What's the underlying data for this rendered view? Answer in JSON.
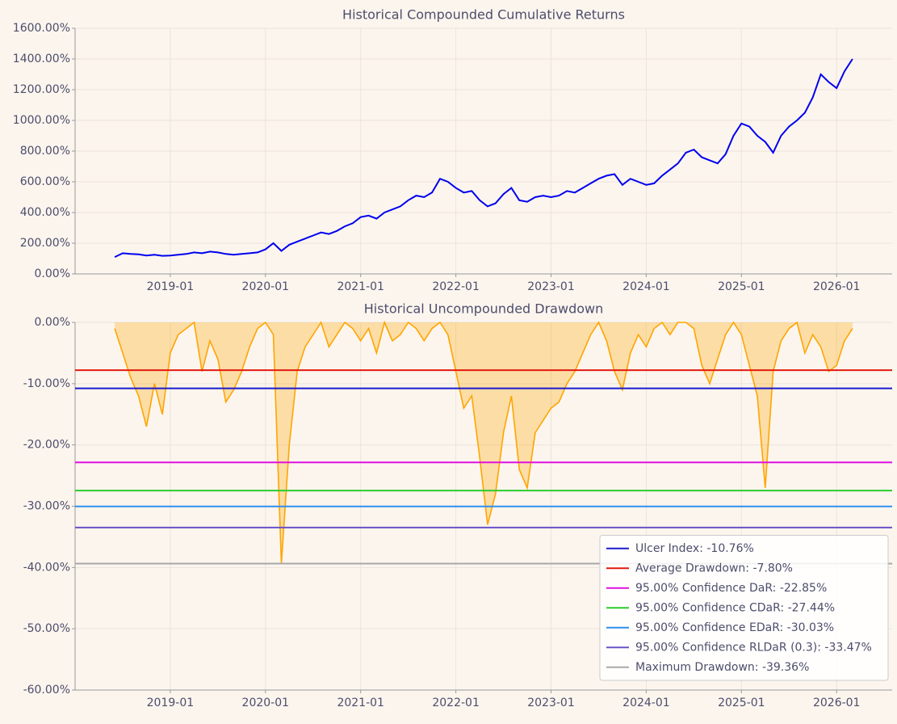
{
  "chart_data": [
    {
      "type": "line",
      "title": "Historical Compounded Cumulative Returns",
      "x": [
        "2018-06",
        "2018-07",
        "2018-08",
        "2018-09",
        "2018-10",
        "2018-11",
        "2018-12",
        "2019-01",
        "2019-02",
        "2019-03",
        "2019-04",
        "2019-05",
        "2019-06",
        "2019-07",
        "2019-08",
        "2019-09",
        "2019-10",
        "2019-11",
        "2019-12",
        "2020-01",
        "2020-02",
        "2020-03",
        "2020-04",
        "2020-05",
        "2020-06",
        "2020-07",
        "2020-08",
        "2020-09",
        "2020-10",
        "2020-11",
        "2020-12",
        "2021-01",
        "2021-02",
        "2021-03",
        "2021-04",
        "2021-05",
        "2021-06",
        "2021-07",
        "2021-08",
        "2021-09",
        "2021-10",
        "2021-11",
        "2021-12",
        "2022-01",
        "2022-02",
        "2022-03",
        "2022-04",
        "2022-05",
        "2022-06",
        "2022-07",
        "2022-08",
        "2022-09",
        "2022-10",
        "2022-11",
        "2022-12",
        "2023-01",
        "2023-02",
        "2023-03",
        "2023-04",
        "2023-05",
        "2023-06",
        "2023-07",
        "2023-08",
        "2023-09",
        "2023-10",
        "2023-11",
        "2023-12",
        "2024-01",
        "2024-02",
        "2024-03",
        "2024-04",
        "2024-05",
        "2024-06",
        "2024-07",
        "2024-08",
        "2024-09",
        "2024-10",
        "2024-11",
        "2024-12",
        "2025-01",
        "2025-02",
        "2025-03",
        "2025-04",
        "2025-05",
        "2025-06",
        "2025-07",
        "2025-08",
        "2025-09",
        "2025-10",
        "2025-11",
        "2025-12",
        "2026-01",
        "2026-02",
        "2026-03"
      ],
      "values": [
        110,
        135,
        130,
        128,
        120,
        125,
        118,
        120,
        125,
        130,
        140,
        135,
        145,
        140,
        130,
        125,
        130,
        135,
        140,
        160,
        200,
        150,
        190,
        210,
        230,
        250,
        270,
        260,
        280,
        310,
        330,
        370,
        380,
        360,
        400,
        420,
        440,
        480,
        510,
        500,
        530,
        620,
        600,
        560,
        530,
        540,
        480,
        440,
        460,
        520,
        560,
        480,
        470,
        500,
        510,
        500,
        510,
        540,
        530,
        560,
        590,
        620,
        640,
        650,
        580,
        620,
        600,
        580,
        590,
        640,
        680,
        720,
        790,
        810,
        760,
        740,
        720,
        780,
        900,
        980,
        960,
        900,
        860,
        790,
        900,
        960,
        1000,
        1050,
        1150,
        1300,
        1250,
        1210,
        1320,
        1400
      ],
      "color": "#0000ee",
      "xlim": [
        "2018-01",
        "2026-08"
      ],
      "xticks": [
        "2019-01",
        "2020-01",
        "2021-01",
        "2022-01",
        "2023-01",
        "2024-01",
        "2025-01",
        "2026-01"
      ],
      "ylim": [
        0,
        1600
      ],
      "yticks": [
        {
          "value": 0,
          "label": "0.00%"
        },
        {
          "value": 200,
          "label": "200.00%"
        },
        {
          "value": 400,
          "label": "400.00%"
        },
        {
          "value": 600,
          "label": "600.00%"
        },
        {
          "value": 800,
          "label": "800.00%"
        },
        {
          "value": 1000,
          "label": "1000.00%"
        },
        {
          "value": 1200,
          "label": "1200.00%"
        },
        {
          "value": 1400,
          "label": "1400.00%"
        },
        {
          "value": 1600,
          "label": "1600.00%"
        }
      ],
      "grid": true
    },
    {
      "type": "area",
      "title": "Historical Uncompounded Drawdown",
      "x": [
        "2018-06",
        "2018-07",
        "2018-08",
        "2018-09",
        "2018-10",
        "2018-11",
        "2018-12",
        "2019-01",
        "2019-02",
        "2019-03",
        "2019-04",
        "2019-05",
        "2019-06",
        "2019-07",
        "2019-08",
        "2019-09",
        "2019-10",
        "2019-11",
        "2019-12",
        "2020-01",
        "2020-02",
        "2020-03",
        "2020-04",
        "2020-05",
        "2020-06",
        "2020-07",
        "2020-08",
        "2020-09",
        "2020-10",
        "2020-11",
        "2020-12",
        "2021-01",
        "2021-02",
        "2021-03",
        "2021-04",
        "2021-05",
        "2021-06",
        "2021-07",
        "2021-08",
        "2021-09",
        "2021-10",
        "2021-11",
        "2021-12",
        "2022-01",
        "2022-02",
        "2022-03",
        "2022-04",
        "2022-05",
        "2022-06",
        "2022-07",
        "2022-08",
        "2022-09",
        "2022-10",
        "2022-11",
        "2022-12",
        "2023-01",
        "2023-02",
        "2023-03",
        "2023-04",
        "2023-05",
        "2023-06",
        "2023-07",
        "2023-08",
        "2023-09",
        "2023-10",
        "2023-11",
        "2023-12",
        "2024-01",
        "2024-02",
        "2024-03",
        "2024-04",
        "2024-05",
        "2024-06",
        "2024-07",
        "2024-08",
        "2024-09",
        "2024-10",
        "2024-11",
        "2024-12",
        "2025-01",
        "2025-02",
        "2025-03",
        "2025-04",
        "2025-05",
        "2025-06",
        "2025-07",
        "2025-08",
        "2025-09",
        "2025-10",
        "2025-11",
        "2025-12",
        "2026-01",
        "2026-02",
        "2026-03"
      ],
      "values": [
        -1,
        -5,
        -9,
        -12,
        -17,
        -10,
        -15,
        -5,
        -2,
        -1,
        0,
        -8,
        -3,
        -6,
        -13,
        -11,
        -8,
        -4,
        -1,
        0,
        -2,
        -39.36,
        -20,
        -8,
        -4,
        -2,
        0,
        -4,
        -2,
        0,
        -1,
        -3,
        -1,
        -5,
        0,
        -3,
        -2,
        0,
        -1,
        -3,
        -1,
        0,
        -2,
        -8,
        -14,
        -12,
        -22,
        -33,
        -28,
        -18,
        -12,
        -24,
        -27,
        -18,
        -16,
        -14,
        -13,
        -10,
        -8,
        -5,
        -2,
        0,
        -3,
        -8,
        -11,
        -5,
        -2,
        -4,
        -1,
        0,
        -2,
        0,
        0,
        -1,
        -7,
        -10,
        -6,
        -2,
        0,
        -2,
        -7,
        -12,
        -27,
        -8,
        -3,
        -1,
        0,
        -5,
        -2,
        -4,
        -8,
        -7,
        -3,
        -1
      ],
      "color": "#ffa500",
      "xlim": [
        "2018-01",
        "2026-08"
      ],
      "xticks": [
        "2019-01",
        "2020-01",
        "2021-01",
        "2022-01",
        "2023-01",
        "2024-01",
        "2025-01",
        "2026-01"
      ],
      "ylim": [
        -60,
        0
      ],
      "yticks": [
        {
          "value": -60,
          "label": "-60.00%"
        },
        {
          "value": -50,
          "label": "-50.00%"
        },
        {
          "value": -40,
          "label": "-40.00%"
        },
        {
          "value": -30,
          "label": "-30.00%"
        },
        {
          "value": -20,
          "label": "-20.00%"
        },
        {
          "value": -10,
          "label": "-10.00%"
        },
        {
          "value": 0,
          "label": "0.00%"
        }
      ],
      "grid": true,
      "reference_lines": [
        {
          "name": "Ulcer Index: -10.76%",
          "value": -10.76,
          "color": "#1a1acc"
        },
        {
          "name": "Average Drawdown: -7.80%",
          "value": -7.8,
          "color": "#e41a0e"
        },
        {
          "name": "95.00% Confidence DaR: -22.85%",
          "value": -22.85,
          "color": "#e010e0"
        },
        {
          "name": "95.00% Confidence CDaR: -27.44%",
          "value": -27.44,
          "color": "#2ccc2c"
        },
        {
          "name": "95.00% Confidence EDaR: -30.03%",
          "value": -30.03,
          "color": "#2f8ff0"
        },
        {
          "name": "95.00% Confidence RLDaR (0.3): -33.47%",
          "value": -33.47,
          "color": "#6a52c8"
        },
        {
          "name": "Maximum Drawdown: -39.36%",
          "value": -39.36,
          "color": "#a8a8a8"
        }
      ],
      "legend": "lower right"
    }
  ]
}
